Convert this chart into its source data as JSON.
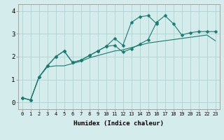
{
  "xlabel": "Humidex (Indice chaleur)",
  "x_values": [
    0,
    1,
    2,
    3,
    4,
    5,
    6,
    7,
    8,
    9,
    10,
    11,
    12,
    13,
    14,
    15,
    16,
    17,
    18,
    19,
    20,
    21,
    22,
    23
  ],
  "y_upper": [
    0.2,
    0.1,
    1.1,
    1.6,
    2.0,
    2.25,
    1.75,
    1.85,
    2.05,
    2.25,
    2.45,
    2.8,
    2.5,
    3.5,
    3.75,
    3.8,
    3.45,
    null,
    null,
    null,
    null,
    null,
    null,
    null
  ],
  "y_middle": [
    0.2,
    0.1,
    1.1,
    1.6,
    2.0,
    2.25,
    1.75,
    1.85,
    2.05,
    2.25,
    2.45,
    2.5,
    2.2,
    2.35,
    2.55,
    2.75,
    3.5,
    3.8,
    3.45,
    2.95,
    3.05,
    3.1,
    3.1,
    3.1
  ],
  "y_lower": [
    0.2,
    0.1,
    1.1,
    1.55,
    1.6,
    1.6,
    1.7,
    1.8,
    1.95,
    2.05,
    2.15,
    2.25,
    2.3,
    2.4,
    2.5,
    2.6,
    2.65,
    2.7,
    2.75,
    2.8,
    2.85,
    2.9,
    2.95,
    2.7
  ],
  "ylim": [
    -0.3,
    4.3
  ],
  "yticks": [
    0,
    1,
    2,
    3,
    4
  ],
  "bg_color": "#d5ecec",
  "grid_color": "#afd0d0",
  "line_color": "#1a7a6e",
  "marker_size": 2.5
}
